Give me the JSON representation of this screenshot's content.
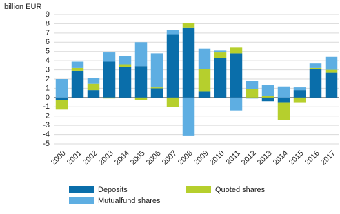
{
  "chart_data": {
    "type": "stacked-bar",
    "y_label": "billion EUR",
    "categories": [
      "2000",
      "2001",
      "2002",
      "2003",
      "2004",
      "2005",
      "2006",
      "2007",
      "2008",
      "2009",
      "2010",
      "2011",
      "2012",
      "2013",
      "2014",
      "2015",
      "2016",
      "2017"
    ],
    "series": [
      {
        "name": "Deposits",
        "color": "#0a6eaa",
        "values": [
          -0.3,
          2.9,
          0.8,
          3.9,
          3.3,
          3.4,
          1.0,
          6.8,
          7.6,
          0.7,
          4.3,
          4.8,
          -0.1,
          -0.4,
          -0.5,
          0.8,
          3.1,
          2.7
        ]
      },
      {
        "name": "Quoted shares",
        "color": "#b6cf2d",
        "values": [
          -1.0,
          0.3,
          0.7,
          -0.1,
          0.3,
          -0.3,
          0.1,
          -1.0,
          0.5,
          2.4,
          0.6,
          0.6,
          0.9,
          0.2,
          -1.9,
          -0.5,
          0.1,
          0.3
        ]
      },
      {
        "name": "Mutualfund shares",
        "color": "#5eaee2",
        "values": [
          2.0,
          0.7,
          0.6,
          1.0,
          0.9,
          2.6,
          3.7,
          0.5,
          -4.1,
          2.2,
          0.2,
          -1.4,
          0.9,
          1.2,
          1.2,
          0.3,
          0.5,
          1.4
        ]
      }
    ],
    "ylim": [
      -5,
      9
    ],
    "yticks": [
      -5,
      -4,
      -3,
      -2,
      -1,
      0,
      1,
      2,
      3,
      4,
      5,
      6,
      7,
      8,
      9
    ],
    "grid": true
  }
}
